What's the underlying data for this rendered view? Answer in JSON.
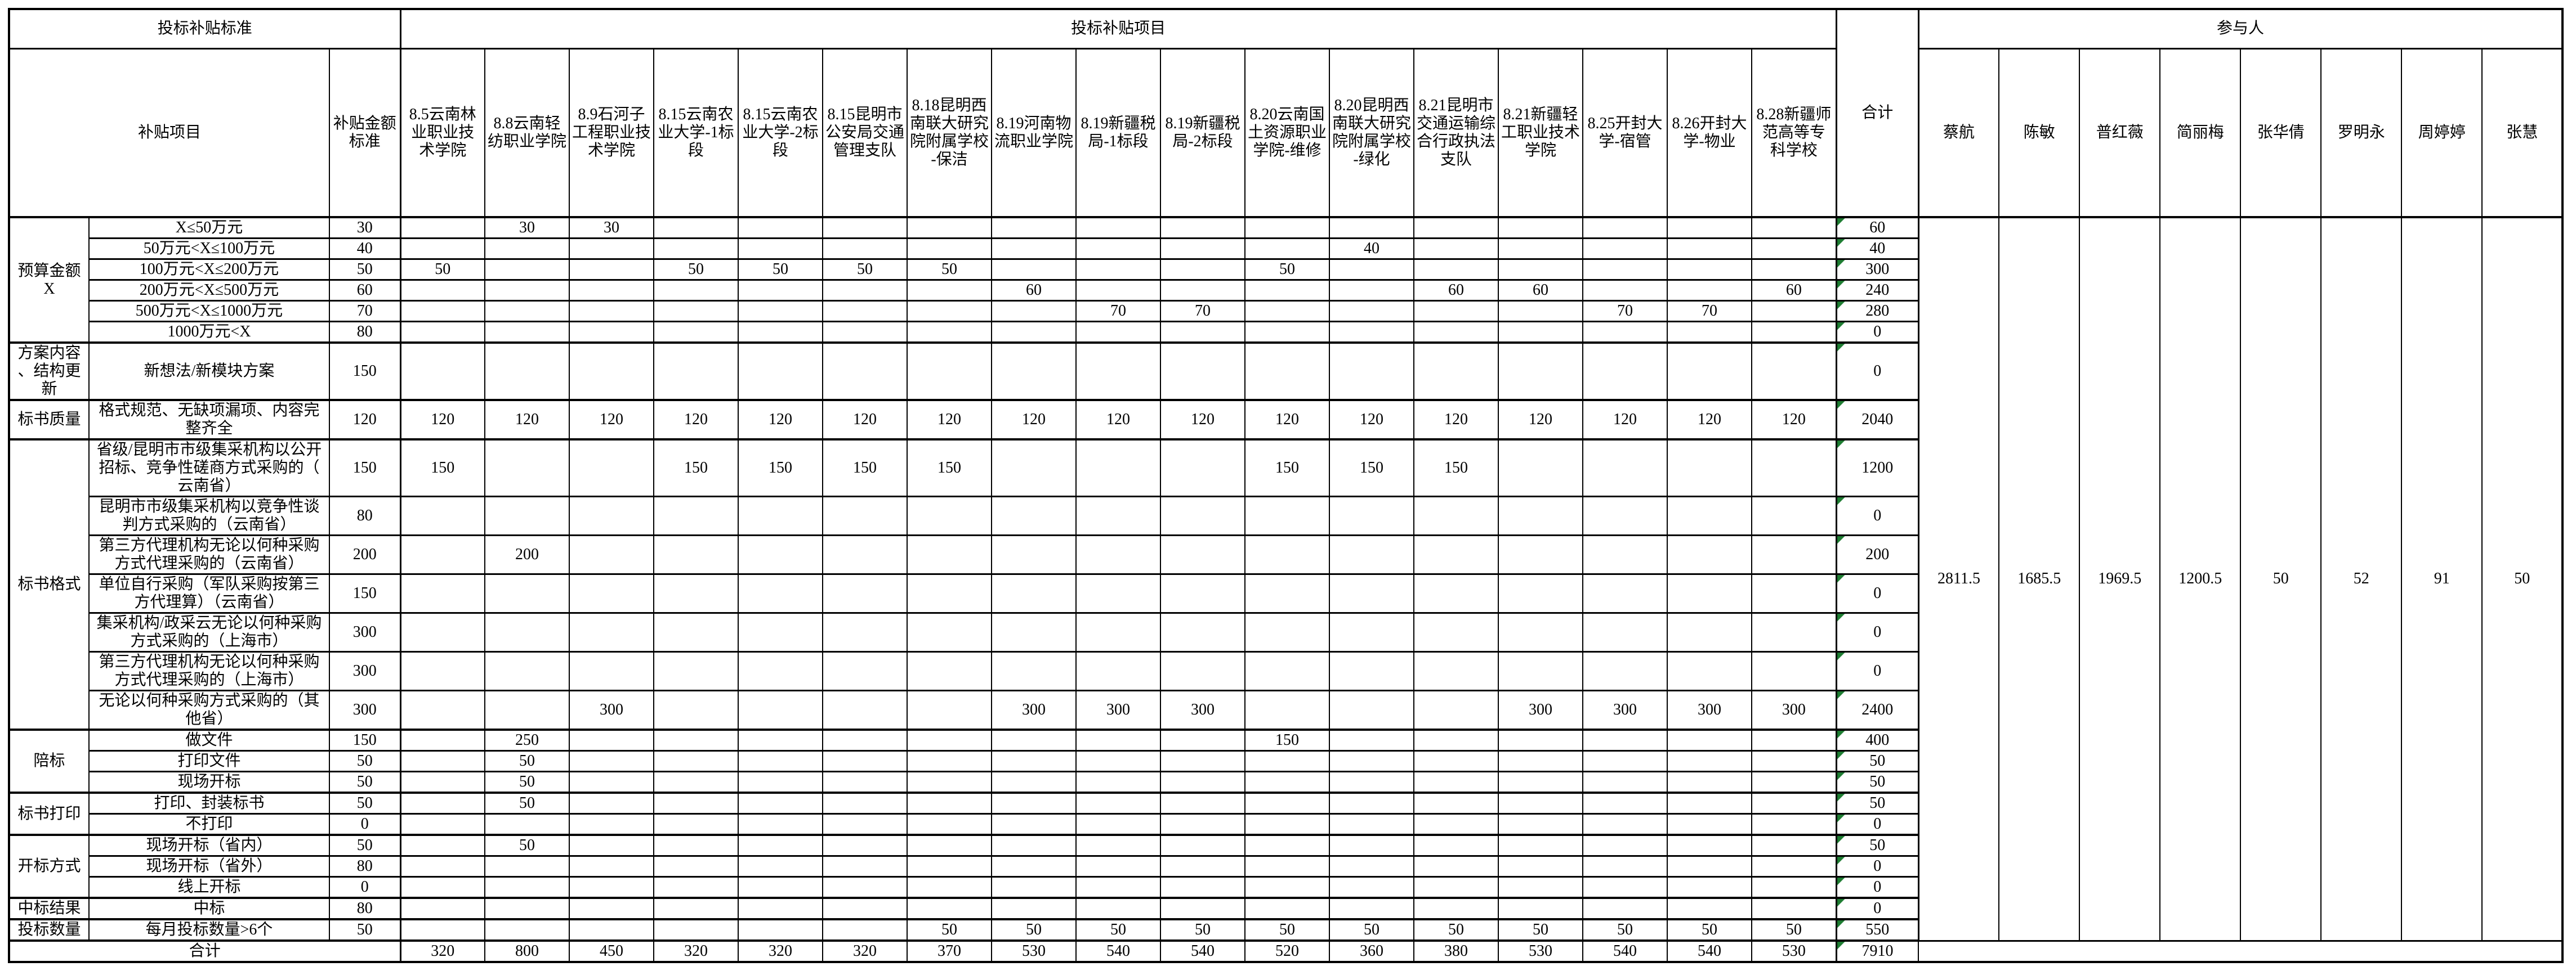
{
  "header": {
    "standards_section": "投标补贴标准",
    "projects_section": "投标补贴项目",
    "participants_section": "参与人",
    "item_col": "补贴项目",
    "standard_col": "补贴金额标准",
    "total_col": "合计",
    "project_columns": [
      "8.5云南林业职业技术学院",
      "8.8云南轻纺职业学院",
      "8.9石河子工程职业技术学院",
      "8.15云南农业大学-1标段",
      "8.15云南农业大学-2标段",
      "8.15昆明市公安局交通管理支队",
      "8.18昆明西南联大研究院附属学校-保洁",
      "8.19河南物流职业学院",
      "8.19新疆税局-1标段",
      "8.19新疆税局-2标段",
      "8.20云南国土资源职业学院-维修",
      "8.20昆明西南联大研究院附属学校-绿化",
      "8.21昆明市交通运输综合行政执法支队",
      "8.21新疆轻工职业技术学院",
      "8.25开封大学-宿管",
      "8.26开封大学-物业",
      "8.28新疆师范高等专科学校"
    ],
    "participant_columns": [
      "蔡航",
      "陈敏",
      "普红薇",
      "简丽梅",
      "张华倩",
      "罗明永",
      "周婷婷",
      "张慧"
    ]
  },
  "participant_totals": [
    2811.5,
    1685.5,
    1969.5,
    1200.5,
    50,
    52,
    91,
    50
  ],
  "groups": [
    {
      "label": "预算金额X",
      "rows": [
        {
          "item": "X≤50万元",
          "standard": 30,
          "values": [
            null,
            30,
            30,
            null,
            null,
            null,
            null,
            null,
            null,
            null,
            null,
            null,
            null,
            null,
            null,
            null,
            null
          ],
          "total": 60
        },
        {
          "item": "50万元<X≤100万元",
          "standard": 40,
          "values": [
            null,
            null,
            null,
            null,
            null,
            null,
            null,
            null,
            null,
            null,
            null,
            40,
            null,
            null,
            null,
            null,
            null
          ],
          "total": 40
        },
        {
          "item": "100万元<X≤200万元",
          "standard": 50,
          "values": [
            50,
            null,
            null,
            50,
            50,
            50,
            50,
            null,
            null,
            null,
            50,
            null,
            null,
            null,
            null,
            null,
            null
          ],
          "total": 300
        },
        {
          "item": "200万元<X≤500万元",
          "standard": 60,
          "values": [
            null,
            null,
            null,
            null,
            null,
            null,
            null,
            60,
            null,
            null,
            null,
            null,
            60,
            60,
            null,
            null,
            60
          ],
          "total": 240
        },
        {
          "item": "500万元<X≤1000万元",
          "standard": 70,
          "values": [
            null,
            null,
            null,
            null,
            null,
            null,
            null,
            null,
            70,
            70,
            null,
            null,
            null,
            null,
            70,
            70,
            null
          ],
          "total": 280
        },
        {
          "item": "1000万元<X",
          "standard": 80,
          "values": [
            null,
            null,
            null,
            null,
            null,
            null,
            null,
            null,
            null,
            null,
            null,
            null,
            null,
            null,
            null,
            null,
            null
          ],
          "total": 0
        }
      ]
    },
    {
      "label": "方案内容、结构更新",
      "rows": [
        {
          "item": "新想法/新模块方案",
          "standard": 150,
          "values": [
            null,
            null,
            null,
            null,
            null,
            null,
            null,
            null,
            null,
            null,
            null,
            null,
            null,
            null,
            null,
            null,
            null
          ],
          "total": 0
        }
      ]
    },
    {
      "label": "标书质量",
      "rows": [
        {
          "item": "格式规范、无缺项漏项、内容完整齐全",
          "standard": 120,
          "values": [
            120,
            120,
            120,
            120,
            120,
            120,
            120,
            120,
            120,
            120,
            120,
            120,
            120,
            120,
            120,
            120,
            120
          ],
          "total": 2040
        }
      ]
    },
    {
      "label": "标书格式",
      "rows": [
        {
          "item": "省级/昆明市市级集采机构以公开招标、竞争性磋商方式采购的（云南省）",
          "standard": 150,
          "values": [
            150,
            null,
            null,
            150,
            150,
            150,
            150,
            null,
            null,
            null,
            150,
            150,
            150,
            null,
            null,
            null,
            null
          ],
          "total": 1200
        },
        {
          "item": "昆明市市级集采机构以竞争性谈判方式采购的（云南省）",
          "standard": 80,
          "values": [
            null,
            null,
            null,
            null,
            null,
            null,
            null,
            null,
            null,
            null,
            null,
            null,
            null,
            null,
            null,
            null,
            null
          ],
          "total": 0
        },
        {
          "item": "第三方代理机构无论以何种采购方式代理采购的（云南省）",
          "standard": 200,
          "values": [
            null,
            200,
            null,
            null,
            null,
            null,
            null,
            null,
            null,
            null,
            null,
            null,
            null,
            null,
            null,
            null,
            null
          ],
          "total": 200
        },
        {
          "item": "单位自行采购（军队采购按第三方代理算）（云南省）",
          "standard": 150,
          "values": [
            null,
            null,
            null,
            null,
            null,
            null,
            null,
            null,
            null,
            null,
            null,
            null,
            null,
            null,
            null,
            null,
            null
          ],
          "total": 0
        },
        {
          "item": "集采机构/政采云无论以何种采购方式采购的（上海市）",
          "standard": 300,
          "values": [
            null,
            null,
            null,
            null,
            null,
            null,
            null,
            null,
            null,
            null,
            null,
            null,
            null,
            null,
            null,
            null,
            null
          ],
          "total": 0
        },
        {
          "item": "第三方代理机构无论以何种采购方式代理采购的（上海市）",
          "standard": 300,
          "values": [
            null,
            null,
            null,
            null,
            null,
            null,
            null,
            null,
            null,
            null,
            null,
            null,
            null,
            null,
            null,
            null,
            null
          ],
          "total": 0
        },
        {
          "item": "无论以何种采购方式采购的（其他省）",
          "standard": 300,
          "values": [
            null,
            null,
            300,
            null,
            null,
            null,
            null,
            300,
            300,
            300,
            null,
            null,
            null,
            300,
            300,
            300,
            300
          ],
          "total": 2400
        }
      ]
    },
    {
      "label": "陪标",
      "rows": [
        {
          "item": "做文件",
          "standard": 150,
          "values": [
            null,
            250,
            null,
            null,
            null,
            null,
            null,
            null,
            null,
            null,
            150,
            null,
            null,
            null,
            null,
            null,
            null
          ],
          "total": 400
        },
        {
          "item": "打印文件",
          "standard": 50,
          "values": [
            null,
            50,
            null,
            null,
            null,
            null,
            null,
            null,
            null,
            null,
            null,
            null,
            null,
            null,
            null,
            null,
            null
          ],
          "total": 50
        },
        {
          "item": "现场开标",
          "standard": 50,
          "values": [
            null,
            50,
            null,
            null,
            null,
            null,
            null,
            null,
            null,
            null,
            null,
            null,
            null,
            null,
            null,
            null,
            null
          ],
          "total": 50
        }
      ]
    },
    {
      "label": "标书打印",
      "rows": [
        {
          "item": "打印、封装标书",
          "standard": 50,
          "values": [
            null,
            50,
            null,
            null,
            null,
            null,
            null,
            null,
            null,
            null,
            null,
            null,
            null,
            null,
            null,
            null,
            null
          ],
          "total": 50
        },
        {
          "item": "不打印",
          "standard": 0,
          "values": [
            null,
            null,
            null,
            null,
            null,
            null,
            null,
            null,
            null,
            null,
            null,
            null,
            null,
            null,
            null,
            null,
            null
          ],
          "total": 0
        }
      ]
    },
    {
      "label": "开标方式",
      "rows": [
        {
          "item": "现场开标（省内）",
          "standard": 50,
          "values": [
            null,
            50,
            null,
            null,
            null,
            null,
            null,
            null,
            null,
            null,
            null,
            null,
            null,
            null,
            null,
            null,
            null
          ],
          "total": 50
        },
        {
          "item": "现场开标（省外）",
          "standard": 80,
          "values": [
            null,
            null,
            null,
            null,
            null,
            null,
            null,
            null,
            null,
            null,
            null,
            null,
            null,
            null,
            null,
            null,
            null
          ],
          "total": 0
        },
        {
          "item": "线上开标",
          "standard": 0,
          "values": [
            null,
            null,
            null,
            null,
            null,
            null,
            null,
            null,
            null,
            null,
            null,
            null,
            null,
            null,
            null,
            null,
            null
          ],
          "total": 0
        }
      ]
    },
    {
      "label": "中标结果",
      "rows": [
        {
          "item": "中标",
          "standard": 80,
          "values": [
            null,
            null,
            null,
            null,
            null,
            null,
            null,
            null,
            null,
            null,
            null,
            null,
            null,
            null,
            null,
            null,
            null
          ],
          "total": 0
        }
      ]
    },
    {
      "label": "投标数量",
      "rows": [
        {
          "item": "每月投标数量>6个",
          "standard": 50,
          "values": [
            null,
            null,
            null,
            null,
            null,
            null,
            50,
            50,
            50,
            50,
            50,
            50,
            50,
            50,
            50,
            50,
            50
          ],
          "total": 550
        }
      ]
    }
  ],
  "footer": {
    "label": "合计",
    "values": [
      320,
      800,
      450,
      320,
      320,
      320,
      370,
      530,
      540,
      540,
      520,
      360,
      380,
      530,
      540,
      540,
      530
    ],
    "grand_total": 7910
  },
  "colors": {
    "grid": "#000000",
    "background": "#ffffff",
    "error_triangle": "#1e7d32"
  }
}
